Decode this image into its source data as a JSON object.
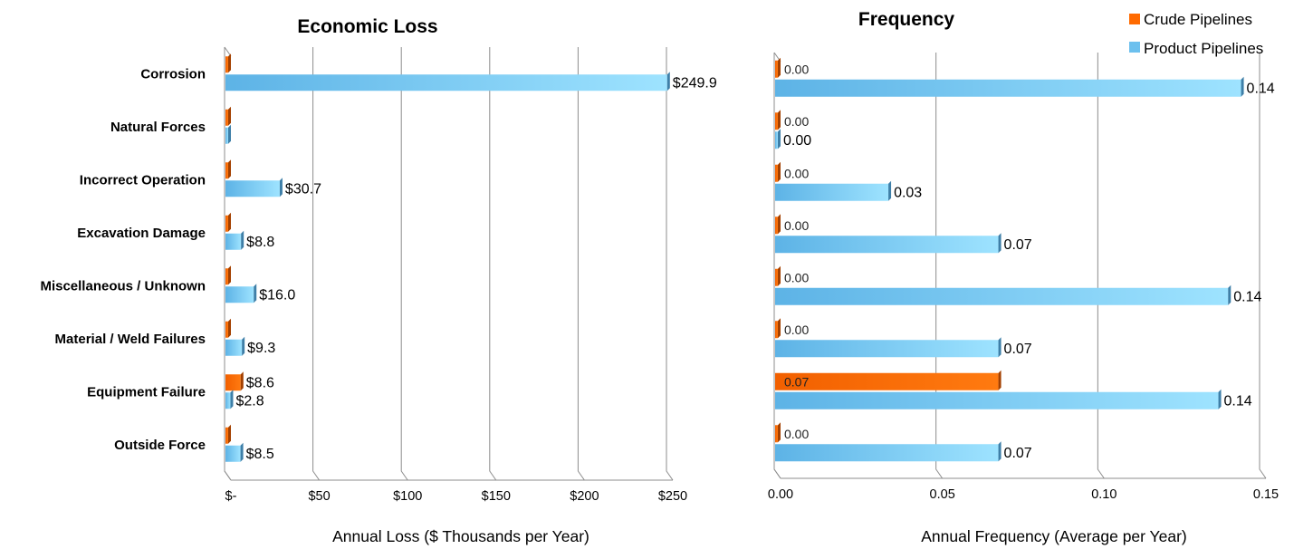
{
  "legend": [
    {
      "name": "Crude Pipelines",
      "color": "#FF6A00"
    },
    {
      "name": "Product Pipelines",
      "color": "#6CC0EE"
    }
  ],
  "chart_data": [
    {
      "type": "bar",
      "orientation": "horizontal",
      "title": "Economic Loss",
      "xlabel": "Annual Loss ($ Thousands per Year)",
      "ylabel": "",
      "categories": [
        "Corrosion",
        "Natural Forces",
        "Incorrect Operation",
        "Excavation Damage",
        "Miscellaneous / Unknown",
        "Material / Weld Failures",
        "Equipment Failure",
        "Outside Force"
      ],
      "xlim": [
        0,
        250
      ],
      "ticks": [
        0,
        50,
        100,
        150,
        200,
        250
      ],
      "tick_labels": [
        "$-",
        "$50",
        "$100",
        "$150",
        "$200",
        "$250"
      ],
      "grid": true,
      "series": [
        {
          "name": "Crude Pipelines",
          "values": [
            0,
            0,
            0,
            0,
            0,
            0,
            8.6,
            0
          ],
          "labels": [
            "",
            "",
            "",
            "",
            "",
            "",
            "$8.6",
            ""
          ]
        },
        {
          "name": "Product Pipelines",
          "values": [
            249.9,
            0,
            30.7,
            8.8,
            16.0,
            9.3,
            2.8,
            8.5
          ],
          "labels": [
            "$249.9",
            "",
            "$30.7",
            "$8.8",
            "$16.0",
            "$9.3",
            "$2.8",
            "$8.5"
          ]
        }
      ]
    },
    {
      "type": "bar",
      "orientation": "horizontal",
      "title": "Frequency",
      "xlabel": "Annual Frequency (Average per Year)",
      "ylabel": "",
      "categories": [
        "Corrosion",
        "Natural Forces",
        "Incorrect Operation",
        "Excavation Damage",
        "Miscellaneous / Unknown",
        "Material / Weld Failures",
        "Equipment Failure",
        "Outside Force"
      ],
      "xlim": [
        0,
        0.15
      ],
      "ticks": [
        0,
        0.05,
        0.1,
        0.15
      ],
      "tick_labels": [
        "0.00",
        "0.05",
        "0.10",
        "0.15"
      ],
      "grid": true,
      "legend_position": "top-right",
      "series": [
        {
          "name": "Crude Pipelines",
          "values": [
            0,
            0,
            0,
            0,
            0,
            0,
            0.069,
            0
          ],
          "labels": [
            "0.00",
            "0.00",
            "0.00",
            "0.00",
            "0.00",
            "0.00",
            "0.07",
            "0.00"
          ]
        },
        {
          "name": "Product Pipelines",
          "values": [
            0.144,
            0,
            0.035,
            0.069,
            0.14,
            0.069,
            0.137,
            0.069
          ],
          "labels": [
            "0.14",
            "0.00",
            "0.03",
            "0.07",
            "0.14",
            "0.07",
            "0.14",
            "0.07"
          ]
        }
      ]
    }
  ]
}
